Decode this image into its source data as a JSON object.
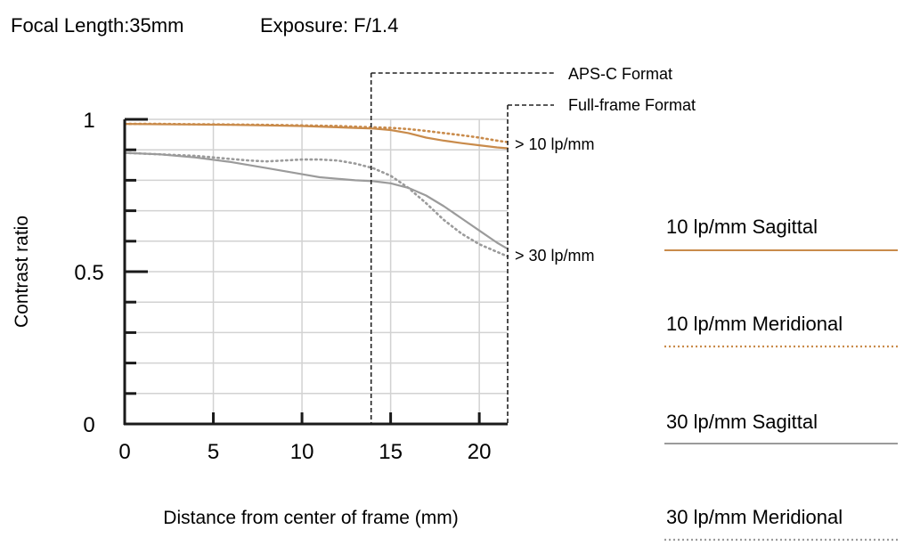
{
  "chart_data": {
    "type": "line",
    "title": "Focal Length:35mm",
    "subtitle": "Exposure: F/1.4",
    "xlabel": "Distance from center of frame (mm)",
    "ylabel": "Contrast ratio",
    "xlim": [
      0,
      21.6
    ],
    "ylim": [
      0,
      1
    ],
    "xticks": [
      0,
      5,
      10,
      15,
      20
    ],
    "xtick_labels": [
      "0",
      "5",
      "10",
      "15",
      "20"
    ],
    "yticks": [
      0,
      0.5,
      1
    ],
    "ytick_labels": [
      "0",
      "0.5",
      "1"
    ],
    "grid": true,
    "legend_position": "right",
    "series": [
      {
        "name": "10 lp/mm Sagittal",
        "style": "solid",
        "color": "#c98b4b",
        "x": [
          0,
          2,
          4,
          6,
          8,
          10,
          12,
          13,
          14,
          15,
          16,
          17,
          18,
          19,
          20,
          21,
          21.6
        ],
        "y": [
          0.985,
          0.984,
          0.983,
          0.982,
          0.98,
          0.978,
          0.974,
          0.972,
          0.97,
          0.965,
          0.955,
          0.94,
          0.93,
          0.922,
          0.915,
          0.908,
          0.905
        ]
      },
      {
        "name": "10 lp/mm Meridional",
        "style": "dotted",
        "color": "#c98b4b",
        "x": [
          0,
          2,
          4,
          6,
          8,
          10,
          12,
          13,
          14,
          15,
          16,
          17,
          18,
          19,
          20,
          21,
          21.6
        ],
        "y": [
          0.985,
          0.985,
          0.984,
          0.983,
          0.982,
          0.98,
          0.978,
          0.976,
          0.974,
          0.972,
          0.968,
          0.962,
          0.955,
          0.948,
          0.94,
          0.93,
          0.925
        ]
      },
      {
        "name": "30 lp/mm Sagittal",
        "style": "solid",
        "color": "#9b9b9b",
        "x": [
          0,
          2,
          4,
          6,
          8,
          10,
          11,
          12,
          13,
          14,
          15,
          16,
          17,
          18,
          19,
          20,
          21,
          21.6
        ],
        "y": [
          0.89,
          0.885,
          0.875,
          0.86,
          0.84,
          0.82,
          0.81,
          0.805,
          0.8,
          0.797,
          0.79,
          0.775,
          0.75,
          0.715,
          0.675,
          0.635,
          0.595,
          0.575
        ]
      },
      {
        "name": "30 lp/mm Meridional",
        "style": "dotted",
        "color": "#9b9b9b",
        "x": [
          0,
          2,
          4,
          6,
          7,
          8,
          9,
          10,
          11,
          12,
          13,
          14,
          15,
          16,
          17,
          18,
          19,
          20,
          21,
          21.6
        ],
        "y": [
          0.89,
          0.885,
          0.88,
          0.87,
          0.865,
          0.862,
          0.865,
          0.868,
          0.868,
          0.865,
          0.855,
          0.84,
          0.815,
          0.775,
          0.725,
          0.67,
          0.625,
          0.59,
          0.565,
          0.55
        ]
      }
    ],
    "annotations": [
      {
        "text": "APS-C Format",
        "x": 13.9,
        "kind": "vertical-dashed-line"
      },
      {
        "text": "Full-frame Format",
        "x": 21.6,
        "kind": "vertical-dashed-line"
      },
      {
        "text": "> 10 lp/mm",
        "y": 0.93,
        "kind": "series-group-label"
      },
      {
        "text": "> 30 lp/mm",
        "y": 0.56,
        "kind": "series-group-label"
      }
    ]
  }
}
